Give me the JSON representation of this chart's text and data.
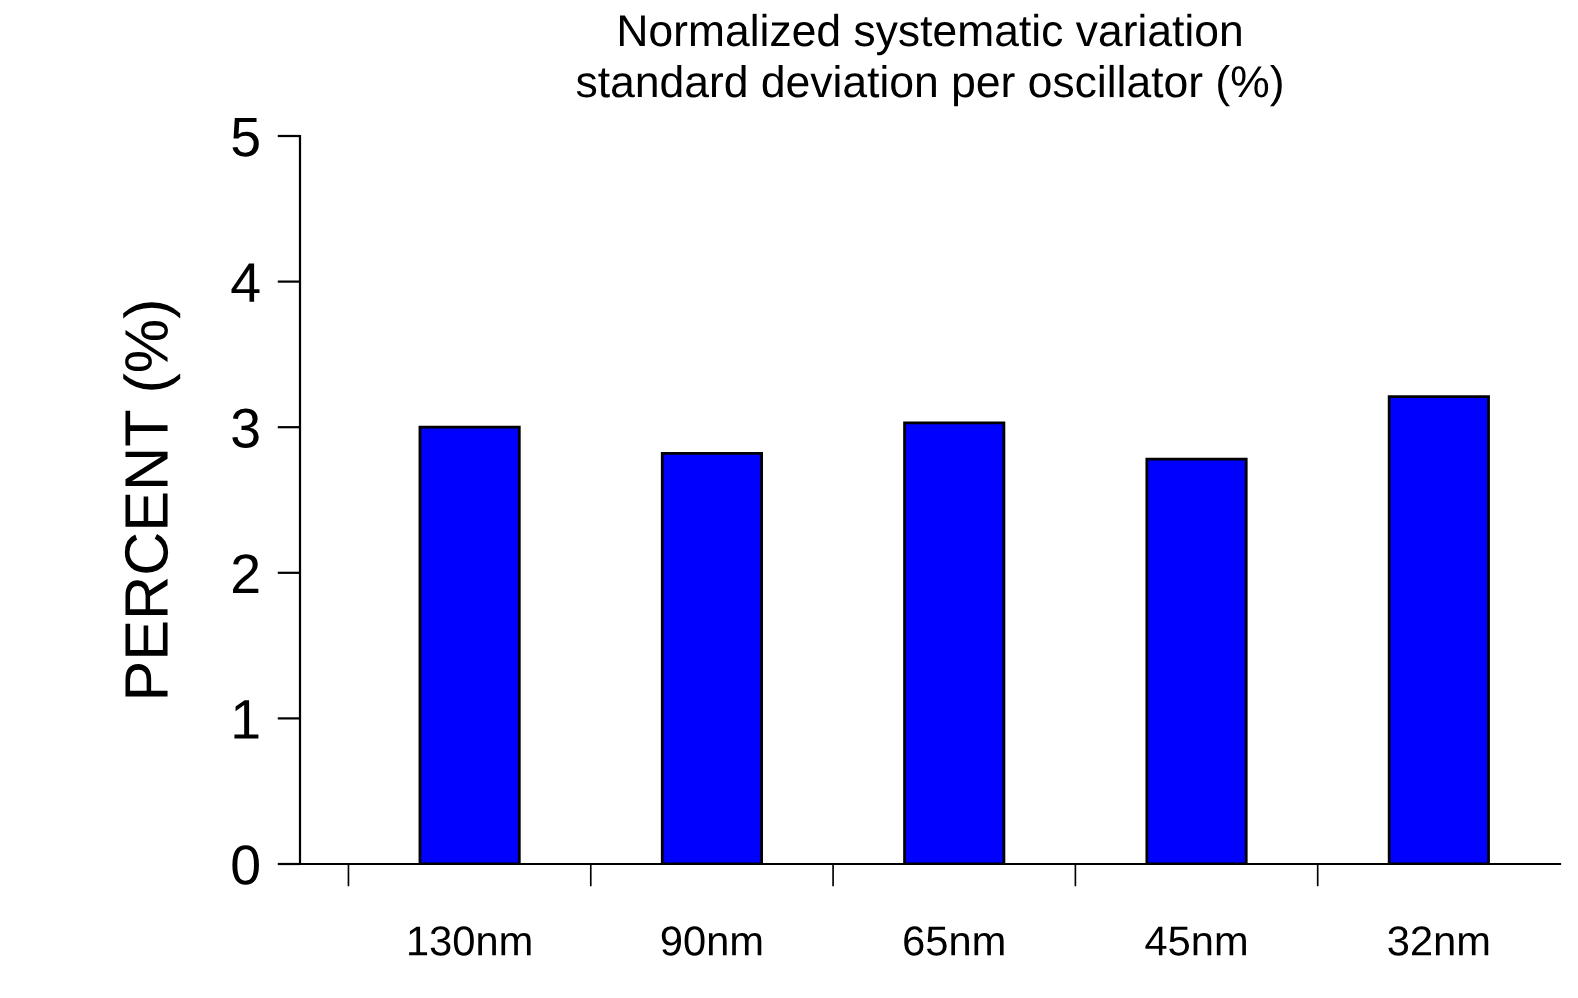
{
  "chart_data": {
    "type": "bar",
    "title": "Normalized systematic variation\nstandard deviation per oscillator (%)",
    "ylabel": "PERCENT (%)",
    "categories": [
      "130nm",
      "90nm",
      "65nm",
      "45nm",
      "32nm"
    ],
    "values": [
      3.0,
      2.82,
      3.03,
      2.78,
      3.21
    ],
    "color": "#0000ff",
    "ylim": [
      0,
      5
    ],
    "yticks": [
      0,
      1,
      2,
      3,
      4,
      5
    ],
    "grid": false,
    "legend": false
  }
}
